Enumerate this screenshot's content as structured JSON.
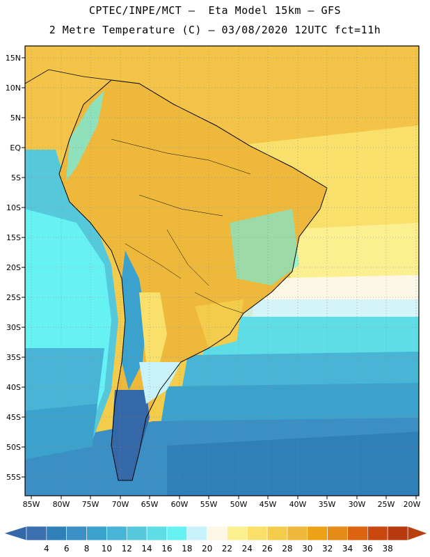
{
  "header": {
    "line1": "CPTEC/INPE/MCT –  Eta Model 15km – GFS",
    "line2": "2 Metre Temperature (C) – 03/08/2020 12UTC fct=11h"
  },
  "map": {
    "lat_labels": [
      "15N",
      "10N",
      "5N",
      "EQ",
      "5S",
      "10S",
      "15S",
      "20S",
      "25S",
      "30S",
      "35S",
      "40S",
      "45S",
      "50S",
      "55S"
    ],
    "lon_labels": [
      "85W",
      "80W",
      "75W",
      "70W",
      "65W",
      "60W",
      "55W",
      "50W",
      "45W",
      "40W",
      "35W",
      "30W",
      "25W",
      "20W"
    ]
  },
  "colorbar": {
    "ticks": [
      "4",
      "6",
      "8",
      "10",
      "12",
      "14",
      "16",
      "18",
      "20",
      "22",
      "24",
      "26",
      "28",
      "30",
      "32",
      "34",
      "36",
      "38"
    ],
    "colors": [
      "#3a6fb0",
      "#2f7fb8",
      "#3b8fc4",
      "#3aa2cc",
      "#48b5d6",
      "#55c8dc",
      "#5fdde6",
      "#66f2f2",
      "#c9f3fb",
      "#fdf8e6",
      "#fbef90",
      "#f8e06a",
      "#f2cc4a",
      "#eeb83a",
      "#eca215",
      "#e68a18",
      "#dc6410",
      "#c94810",
      "#b63a0d"
    ],
    "under_color": "#3568a8",
    "over_color": "#b8400e"
  }
}
